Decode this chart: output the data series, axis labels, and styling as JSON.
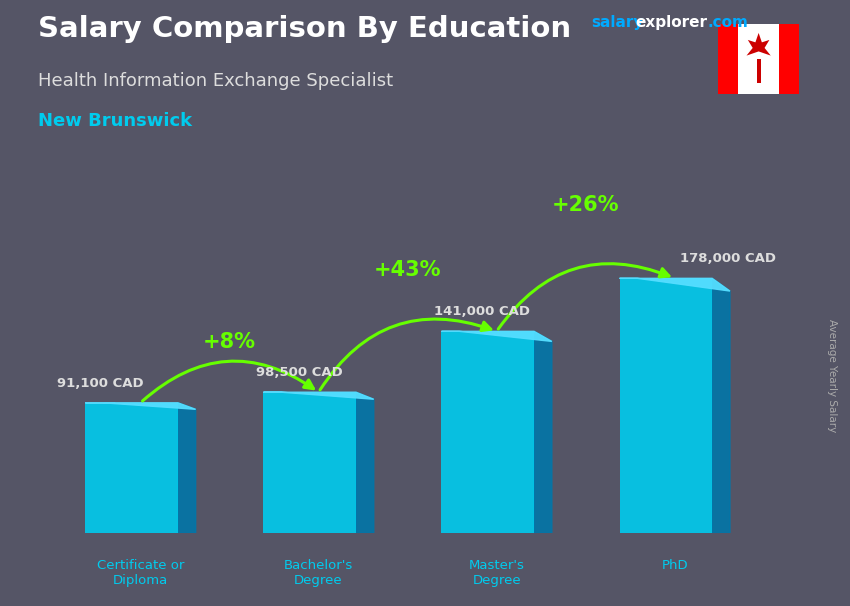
{
  "title": "Salary Comparison By Education",
  "subtitle": "Health Information Exchange Specialist",
  "location": "New Brunswick",
  "watermark_salary": "salary",
  "watermark_explorer": "explorer",
  "watermark_com": ".com",
  "ylabel": "Average Yearly Salary",
  "categories": [
    "Certificate or\nDiploma",
    "Bachelor's\nDegree",
    "Master's\nDegree",
    "PhD"
  ],
  "values": [
    91100,
    98500,
    141000,
    178000
  ],
  "labels": [
    "91,100 CAD",
    "98,500 CAD",
    "141,000 CAD",
    "178,000 CAD"
  ],
  "pct_changes": [
    "+8%",
    "+43%",
    "+26%"
  ],
  "face_color": "#00CCEE",
  "side_color": "#0077AA",
  "top_color": "#55DDFF",
  "arrow_color": "#66FF00",
  "pct_color": "#66FF00",
  "title_color": "#FFFFFF",
  "subtitle_color": "#DDDDDD",
  "location_color": "#00CCEE",
  "label_color": "#DDDDDD",
  "bg_color": "#555566",
  "cat_color": "#00CCEE",
  "watermark_color_salary": "#00AAFF",
  "watermark_color_explorer": "#FFFFFF",
  "watermark_color_com": "#00AAFF",
  "ylabel_color": "#AAAAAA",
  "ylim": [
    0,
    220000
  ],
  "figsize": [
    8.5,
    6.06
  ],
  "dpi": 100
}
